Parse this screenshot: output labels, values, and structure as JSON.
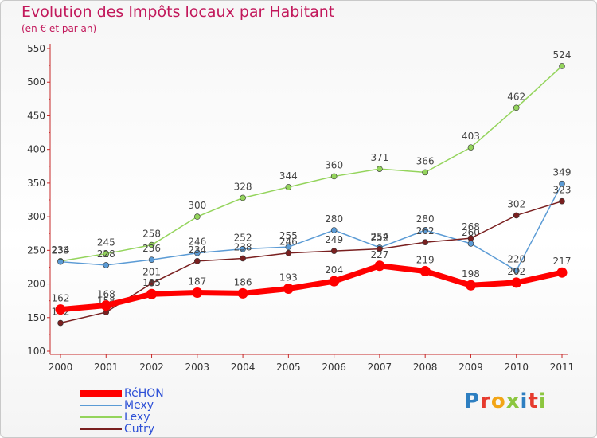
{
  "title": "Evolution des Impôts locaux par Habitant",
  "subtitle": "(en € et par an)",
  "logo": {
    "text": "Proxiti",
    "letter_colors": [
      "#2e7fc1",
      "#e63b2e",
      "#f2a516",
      "#8cc63f",
      "#2e7fc1",
      "#e63b2e",
      "#8cc63f"
    ]
  },
  "chart_data": {
    "type": "line",
    "title": "Evolution des Impôts locaux par Habitant",
    "subtitle": "(en € et par an)",
    "x": [
      2000,
      2001,
      2002,
      2003,
      2004,
      2005,
      2006,
      2007,
      2008,
      2009,
      2010,
      2011
    ],
    "ylim": [
      100,
      550
    ],
    "yticks": [
      100,
      150,
      200,
      250,
      300,
      350,
      400,
      450,
      500,
      550
    ],
    "grid": false,
    "legend_position": "bottom-left",
    "series": [
      {
        "name": "Lexy",
        "color": "#94d45c",
        "values": [
          234,
          245,
          258,
          300,
          328,
          344,
          360,
          371,
          366,
          403,
          462,
          524
        ]
      },
      {
        "name": "Mexy",
        "color": "#5b9bd5",
        "values": [
          233,
          228,
          236,
          246,
          252,
          255,
          280,
          254,
          280,
          260,
          220,
          349
        ]
      },
      {
        "name": "Cutry",
        "color": "#7a2020",
        "values": [
          142,
          158,
          201,
          234,
          238,
          246,
          249,
          252,
          262,
          268,
          302,
          323
        ]
      },
      {
        "name": "RéHON",
        "color": "#ff0000",
        "values": [
          162,
          168,
          185,
          187,
          186,
          193,
          204,
          227,
          219,
          198,
          202,
          217
        ]
      }
    ]
  }
}
